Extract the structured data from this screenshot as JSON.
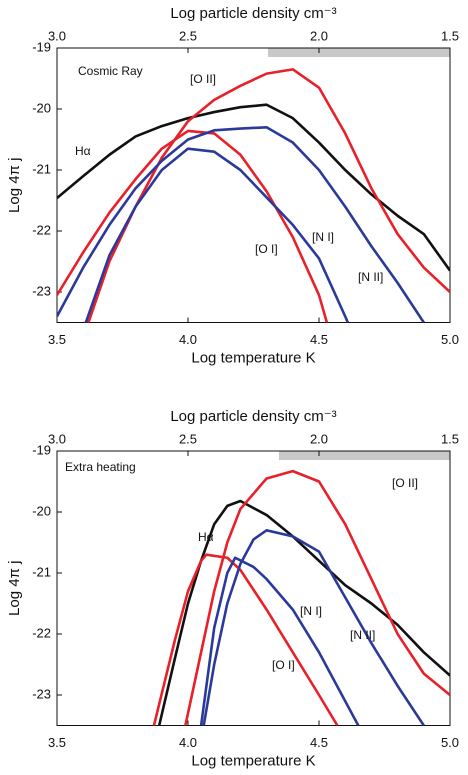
{
  "chart_data": [
    {
      "type": "line",
      "title": "Cosmic Ray",
      "x_label": "Log temperature K",
      "x2_label": "Log particle density cm⁻³",
      "y_label": "Log 4π j",
      "xlim": [
        3.5,
        5.0
      ],
      "xticks": [
        3.5,
        {
          "value": 4,
          "label": "4.0"
        },
        4.5,
        {
          "value": 5,
          "label": "5.0"
        }
      ],
      "x2lim": [
        3.0,
        1.5
      ],
      "x2ticks": [
        {
          "value": 3,
          "label": "3.0"
        },
        2.5,
        {
          "value": 2,
          "label": "2.0"
        },
        1.5
      ],
      "ylim": [
        -23.5,
        -19
      ],
      "yticks": [
        -23,
        -22,
        -21,
        -20,
        -19
      ],
      "series": [
        {
          "name": "Hα",
          "color": "#111111",
          "x": [
            3.5,
            3.6,
            3.7,
            3.8,
            3.9,
            4.0,
            4.1,
            4.2,
            4.3,
            4.4,
            4.5,
            4.6,
            4.7,
            4.8,
            4.9,
            5.0
          ],
          "values": [
            -21.46,
            -21.1,
            -20.75,
            -20.45,
            -20.28,
            -20.15,
            -20.05,
            -19.97,
            -19.93,
            -20.15,
            -20.55,
            -21.0,
            -21.4,
            -21.75,
            -22.05,
            -22.65
          ]
        },
        {
          "name": "[O II]",
          "color": "#e8202a",
          "x": [
            3.62,
            3.7,
            3.8,
            3.9,
            4.0,
            4.1,
            4.2,
            4.3,
            4.4,
            4.5,
            4.6,
            4.7,
            4.8,
            4.9,
            5.0
          ],
          "values": [
            -23.5,
            -22.5,
            -21.6,
            -20.8,
            -20.2,
            -19.85,
            -19.62,
            -19.42,
            -19.35,
            -19.65,
            -20.4,
            -21.3,
            -22.05,
            -22.6,
            -23.0
          ]
        },
        {
          "name": "[O I]",
          "color": "#e8202a",
          "x": [
            3.5,
            3.6,
            3.7,
            3.8,
            3.9,
            4.0,
            4.1,
            4.2,
            4.3,
            4.4,
            4.5,
            4.53
          ],
          "values": [
            -23.05,
            -22.35,
            -21.7,
            -21.15,
            -20.65,
            -20.36,
            -20.4,
            -20.75,
            -21.35,
            -22.1,
            -23.05,
            -23.5
          ]
        },
        {
          "name": "[N II]",
          "color": "#2b3a9a",
          "x": [
            3.5,
            3.6,
            3.7,
            3.8,
            3.9,
            4.0,
            4.1,
            4.2,
            4.3,
            4.4,
            4.5,
            4.6,
            4.7,
            4.8,
            4.9
          ],
          "values": [
            -23.4,
            -22.6,
            -21.9,
            -21.3,
            -20.85,
            -20.5,
            -20.35,
            -20.32,
            -20.3,
            -20.55,
            -21.0,
            -21.6,
            -22.25,
            -22.85,
            -23.5
          ]
        },
        {
          "name": "[N I]",
          "color": "#2b3a9a",
          "x": [
            3.61,
            3.7,
            3.8,
            3.9,
            4.0,
            4.1,
            4.2,
            4.3,
            4.4,
            4.5,
            4.6,
            4.61
          ],
          "values": [
            -23.5,
            -22.4,
            -21.6,
            -21.0,
            -20.65,
            -20.7,
            -21.0,
            -21.45,
            -21.9,
            -22.45,
            -23.4,
            -23.5
          ]
        }
      ]
    },
    {
      "type": "line",
      "title": "Extra heating",
      "x_label": "Log temperature K",
      "x2_label": "Log particle density cm⁻³",
      "y_label": "Log 4π j",
      "xlim": [
        3.5,
        5.0
      ],
      "xticks": [
        3.5,
        {
          "value": 4,
          "label": "4.0"
        },
        4.5,
        {
          "value": 5,
          "label": "5.0"
        }
      ],
      "x2lim": [
        3.0,
        1.5
      ],
      "x2ticks": [
        {
          "value": 3,
          "label": "3.0"
        },
        2.5,
        {
          "value": 2,
          "label": "2.0"
        },
        1.5
      ],
      "ylim": [
        -23.5,
        -19
      ],
      "yticks": [
        -23,
        -22,
        -21,
        -20,
        -19
      ],
      "series": [
        {
          "name": "Hα",
          "color": "#111111",
          "x": [
            3.89,
            3.95,
            4.0,
            4.05,
            4.1,
            4.15,
            4.2,
            4.3,
            4.4,
            4.5,
            4.6,
            4.7,
            4.8,
            4.9,
            5.0
          ],
          "values": [
            -23.5,
            -22.4,
            -21.5,
            -20.8,
            -20.2,
            -19.9,
            -19.82,
            -20.05,
            -20.4,
            -20.8,
            -21.2,
            -21.5,
            -21.85,
            -22.3,
            -22.68
          ]
        },
        {
          "name": "[O II]",
          "color": "#e8202a",
          "x": [
            3.99,
            4.05,
            4.1,
            4.15,
            4.2,
            4.3,
            4.4,
            4.5,
            4.6,
            4.7,
            4.8,
            4.9,
            5.0
          ],
          "values": [
            -23.5,
            -22.3,
            -21.3,
            -20.5,
            -19.95,
            -19.45,
            -19.33,
            -19.5,
            -20.2,
            -21.1,
            -22.0,
            -22.65,
            -23.0
          ]
        },
        {
          "name": "[O I]",
          "color": "#e8202a",
          "x": [
            3.87,
            3.95,
            4.0,
            4.05,
            4.07,
            4.15,
            4.2,
            4.3,
            4.4,
            4.5,
            4.57
          ],
          "values": [
            -23.5,
            -22.1,
            -21.3,
            -20.8,
            -20.7,
            -20.75,
            -20.95,
            -21.6,
            -22.3,
            -23.0,
            -23.5
          ]
        },
        {
          "name": "[N II]",
          "color": "#2b3a9a",
          "x": [
            4.06,
            4.1,
            4.15,
            4.2,
            4.25,
            4.3,
            4.4,
            4.5,
            4.6,
            4.7,
            4.8,
            4.9
          ],
          "values": [
            -23.5,
            -22.5,
            -21.5,
            -20.85,
            -20.45,
            -20.3,
            -20.4,
            -20.65,
            -21.4,
            -22.15,
            -22.85,
            -23.5
          ]
        },
        {
          "name": "[N I]",
          "color": "#2b3a9a",
          "x": [
            4.05,
            4.1,
            4.15,
            4.18,
            4.25,
            4.3,
            4.4,
            4.5,
            4.6,
            4.65
          ],
          "values": [
            -23.5,
            -21.9,
            -21.0,
            -20.75,
            -20.9,
            -21.1,
            -21.6,
            -22.3,
            -23.1,
            -23.5
          ]
        }
      ]
    }
  ]
}
